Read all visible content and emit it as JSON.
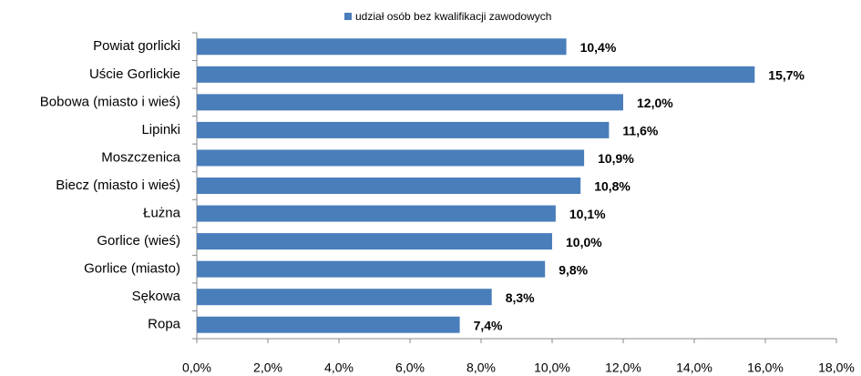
{
  "chart_data": {
    "type": "bar",
    "orientation": "horizontal",
    "legend": "top",
    "series": [
      {
        "name": "udział osób bez kwalifikacji zawodowych",
        "color": "#4a7ebb",
        "values": [
          10.4,
          15.7,
          12.0,
          11.6,
          10.9,
          10.8,
          10.1,
          10.0,
          9.8,
          8.3,
          7.4
        ],
        "value_labels": [
          "10,4%",
          "15,7%",
          "12,0%",
          "11,6%",
          "10,9%",
          "10,8%",
          "10,1%",
          "10,0%",
          "9,8%",
          "8,3%",
          "7,4%"
        ]
      }
    ],
    "categories": [
      "Powiat gorlicki",
      "Uście Gorlickie",
      "Bobowa (miasto  i wieś)",
      "Lipinki",
      "Moszczenica",
      "Biecz (miasto  i wieś)",
      "Łużna",
      "Gorlice (wieś)",
      "Gorlice (miasto)",
      "Sękowa",
      "Ropa"
    ],
    "xlim": [
      0,
      18
    ],
    "xticks": [
      {
        "value": 0,
        "label": "0,0%"
      },
      {
        "value": 2,
        "label": "2,0%"
      },
      {
        "value": 4,
        "label": "4,0%"
      },
      {
        "value": 6,
        "label": "6,0%"
      },
      {
        "value": 8,
        "label": "8,0%"
      },
      {
        "value": 10,
        "label": "10,0%"
      },
      {
        "value": 12,
        "label": "12,0%"
      },
      {
        "value": 14,
        "label": "14,0%"
      },
      {
        "value": 16,
        "label": "16,0%"
      },
      {
        "value": 18,
        "label": "18,0%"
      }
    ]
  }
}
